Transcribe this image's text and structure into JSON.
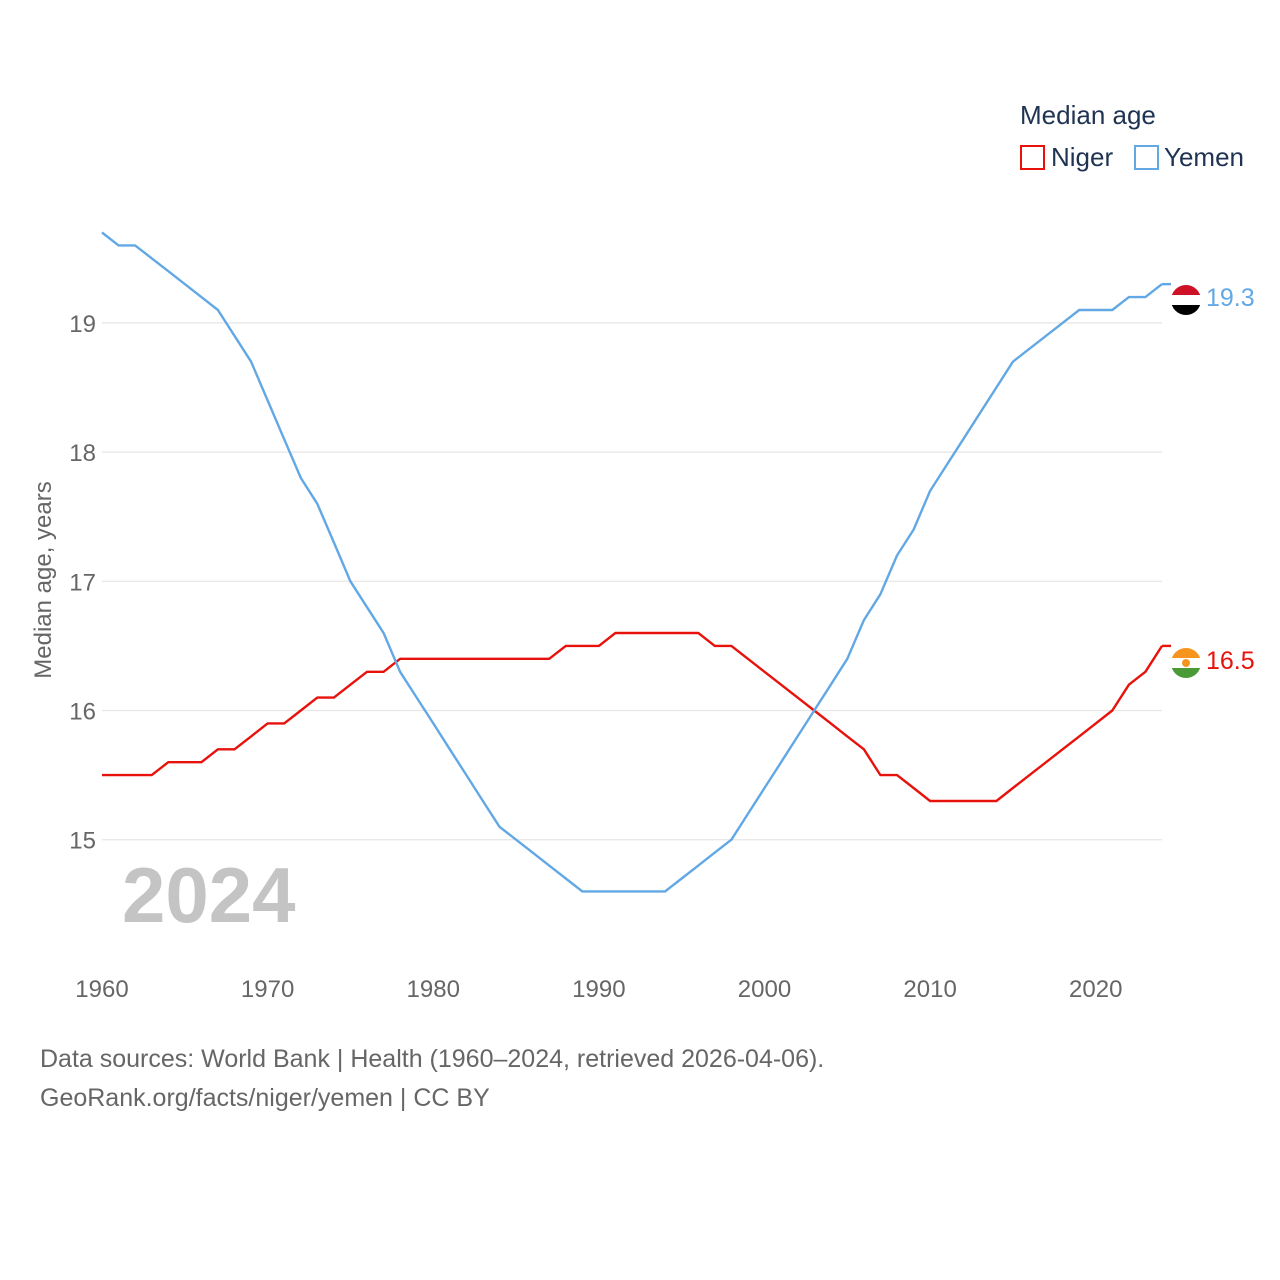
{
  "legend": {
    "title": "Median age",
    "items": [
      "Niger",
      "Yemen"
    ]
  },
  "watermark_year": "2024",
  "footer": {
    "line1": "Data sources: World Bank | Health (1960–2024, retrieved 2026-04-06).",
    "line2": "GeoRank.org/facts/niger/yemen | CC BY"
  },
  "colors": {
    "niger": "#e8120c",
    "yemen": "#62a8e5",
    "grid": "#e6e6e6"
  },
  "chart_data": {
    "type": "line",
    "title": "",
    "xlabel": "",
    "ylabel": "Median age, years",
    "xlim": [
      1960,
      2024
    ],
    "ylim": [
      14.1,
      19.75
    ],
    "xticks": [
      1960,
      1970,
      1980,
      1990,
      2000,
      2010,
      2020
    ],
    "yticks": [
      15,
      16,
      17,
      18,
      19
    ],
    "x": [
      1960,
      1961,
      1962,
      1963,
      1964,
      1965,
      1966,
      1967,
      1968,
      1969,
      1970,
      1971,
      1972,
      1973,
      1974,
      1975,
      1976,
      1977,
      1978,
      1979,
      1980,
      1981,
      1982,
      1983,
      1984,
      1985,
      1986,
      1987,
      1988,
      1989,
      1990,
      1991,
      1992,
      1993,
      1994,
      1995,
      1996,
      1997,
      1998,
      1999,
      2000,
      2001,
      2002,
      2003,
      2004,
      2005,
      2006,
      2007,
      2008,
      2009,
      2010,
      2011,
      2012,
      2013,
      2014,
      2015,
      2016,
      2017,
      2018,
      2019,
      2020,
      2021,
      2022,
      2023,
      2024
    ],
    "series": [
      {
        "name": "Niger",
        "end_label": "16.5",
        "values": [
          15.5,
          15.5,
          15.5,
          15.5,
          15.6,
          15.6,
          15.6,
          15.7,
          15.7,
          15.8,
          15.9,
          15.9,
          16.0,
          16.1,
          16.1,
          16.2,
          16.3,
          16.3,
          16.4,
          16.4,
          16.4,
          16.4,
          16.4,
          16.4,
          16.4,
          16.4,
          16.4,
          16.4,
          16.5,
          16.5,
          16.5,
          16.6,
          16.6,
          16.6,
          16.6,
          16.6,
          16.6,
          16.5,
          16.5,
          16.4,
          16.3,
          16.2,
          16.1,
          16.0,
          15.9,
          15.8,
          15.7,
          15.5,
          15.5,
          15.4,
          15.3,
          15.3,
          15.3,
          15.3,
          15.3,
          15.4,
          15.5,
          15.6,
          15.7,
          15.8,
          15.9,
          16.0,
          16.2,
          16.3,
          16.5
        ]
      },
      {
        "name": "Yemen",
        "end_label": "19.3",
        "values": [
          19.7,
          19.6,
          19.6,
          19.5,
          19.4,
          19.3,
          19.2,
          19.1,
          18.9,
          18.7,
          18.4,
          18.1,
          17.8,
          17.6,
          17.3,
          17.0,
          16.8,
          16.6,
          16.3,
          16.1,
          15.9,
          15.7,
          15.5,
          15.3,
          15.1,
          15.0,
          14.9,
          14.8,
          14.7,
          14.6,
          14.6,
          14.6,
          14.6,
          14.6,
          14.6,
          14.7,
          14.8,
          14.9,
          15.0,
          15.2,
          15.4,
          15.6,
          15.8,
          16.0,
          16.2,
          16.4,
          16.7,
          16.9,
          17.2,
          17.4,
          17.7,
          17.9,
          18.1,
          18.3,
          18.5,
          18.7,
          18.8,
          18.9,
          19.0,
          19.1,
          19.1,
          19.1,
          19.2,
          19.2,
          19.3
        ]
      }
    ]
  }
}
